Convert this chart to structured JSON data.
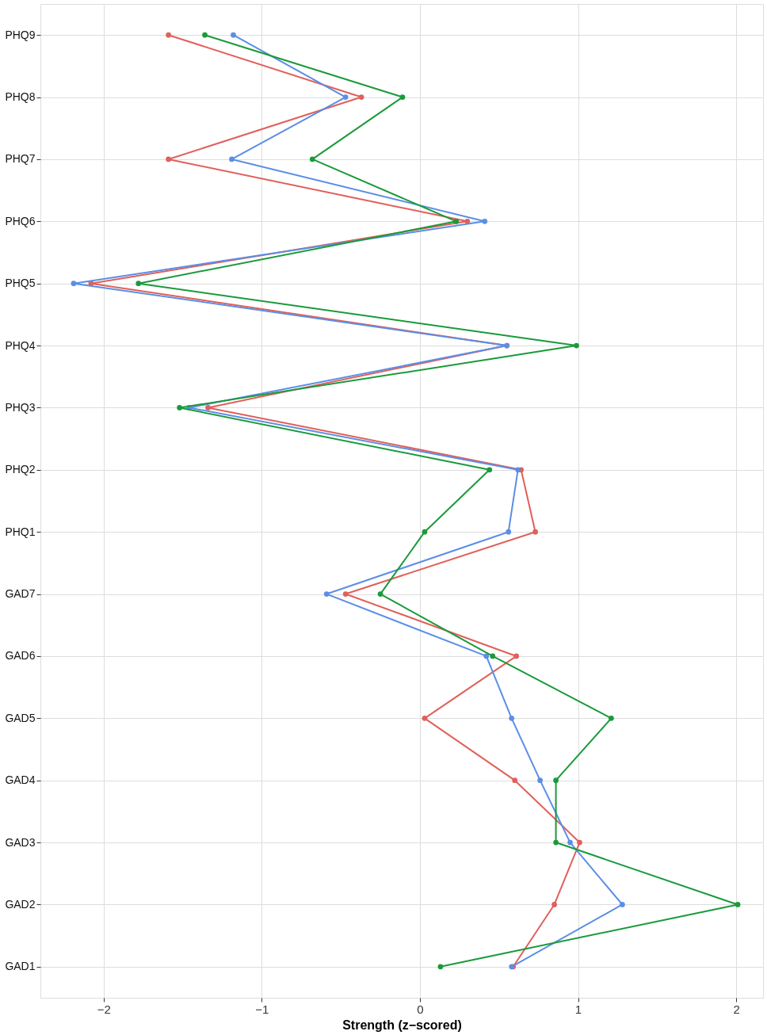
{
  "chart_data": {
    "type": "line",
    "orientation": "horizontal",
    "xlabel": "Strength (z−scored)",
    "categories": [
      "PHQ9",
      "PHQ8",
      "PHQ7",
      "PHQ6",
      "PHQ5",
      "PHQ4",
      "PHQ3",
      "PHQ2",
      "PHQ1",
      "GAD7",
      "GAD6",
      "GAD5",
      "GAD4",
      "GAD3",
      "GAD2",
      "GAD1"
    ],
    "series": [
      {
        "color": "#e0605a",
        "values": [
          -1.59,
          -0.37,
          -1.59,
          0.3,
          -2.08,
          0.55,
          -1.34,
          0.64,
          0.73,
          -0.47,
          0.61,
          0.03,
          0.6,
          1.01,
          0.85,
          0.59
        ]
      },
      {
        "color": "#5b8ee6",
        "values": [
          -1.18,
          -0.47,
          -1.19,
          0.41,
          -2.19,
          0.55,
          -1.46,
          0.62,
          0.56,
          -0.59,
          0.42,
          0.58,
          0.76,
          0.95,
          1.28,
          0.58
        ]
      },
      {
        "color": "#1a9a3a",
        "values": [
          -1.36,
          -0.11,
          -0.68,
          0.23,
          -1.78,
          0.99,
          -1.52,
          0.44,
          0.03,
          -0.25,
          0.46,
          1.21,
          0.86,
          0.86,
          2.01,
          0.13
        ]
      }
    ],
    "xlim": [
      -2.4,
      2.17
    ],
    "xticks": [
      {
        "value": -2,
        "label": "−2"
      },
      {
        "value": -1,
        "label": "−1"
      },
      0,
      1,
      2
    ],
    "grid": true,
    "marker": "circle",
    "line_style": "solid"
  }
}
